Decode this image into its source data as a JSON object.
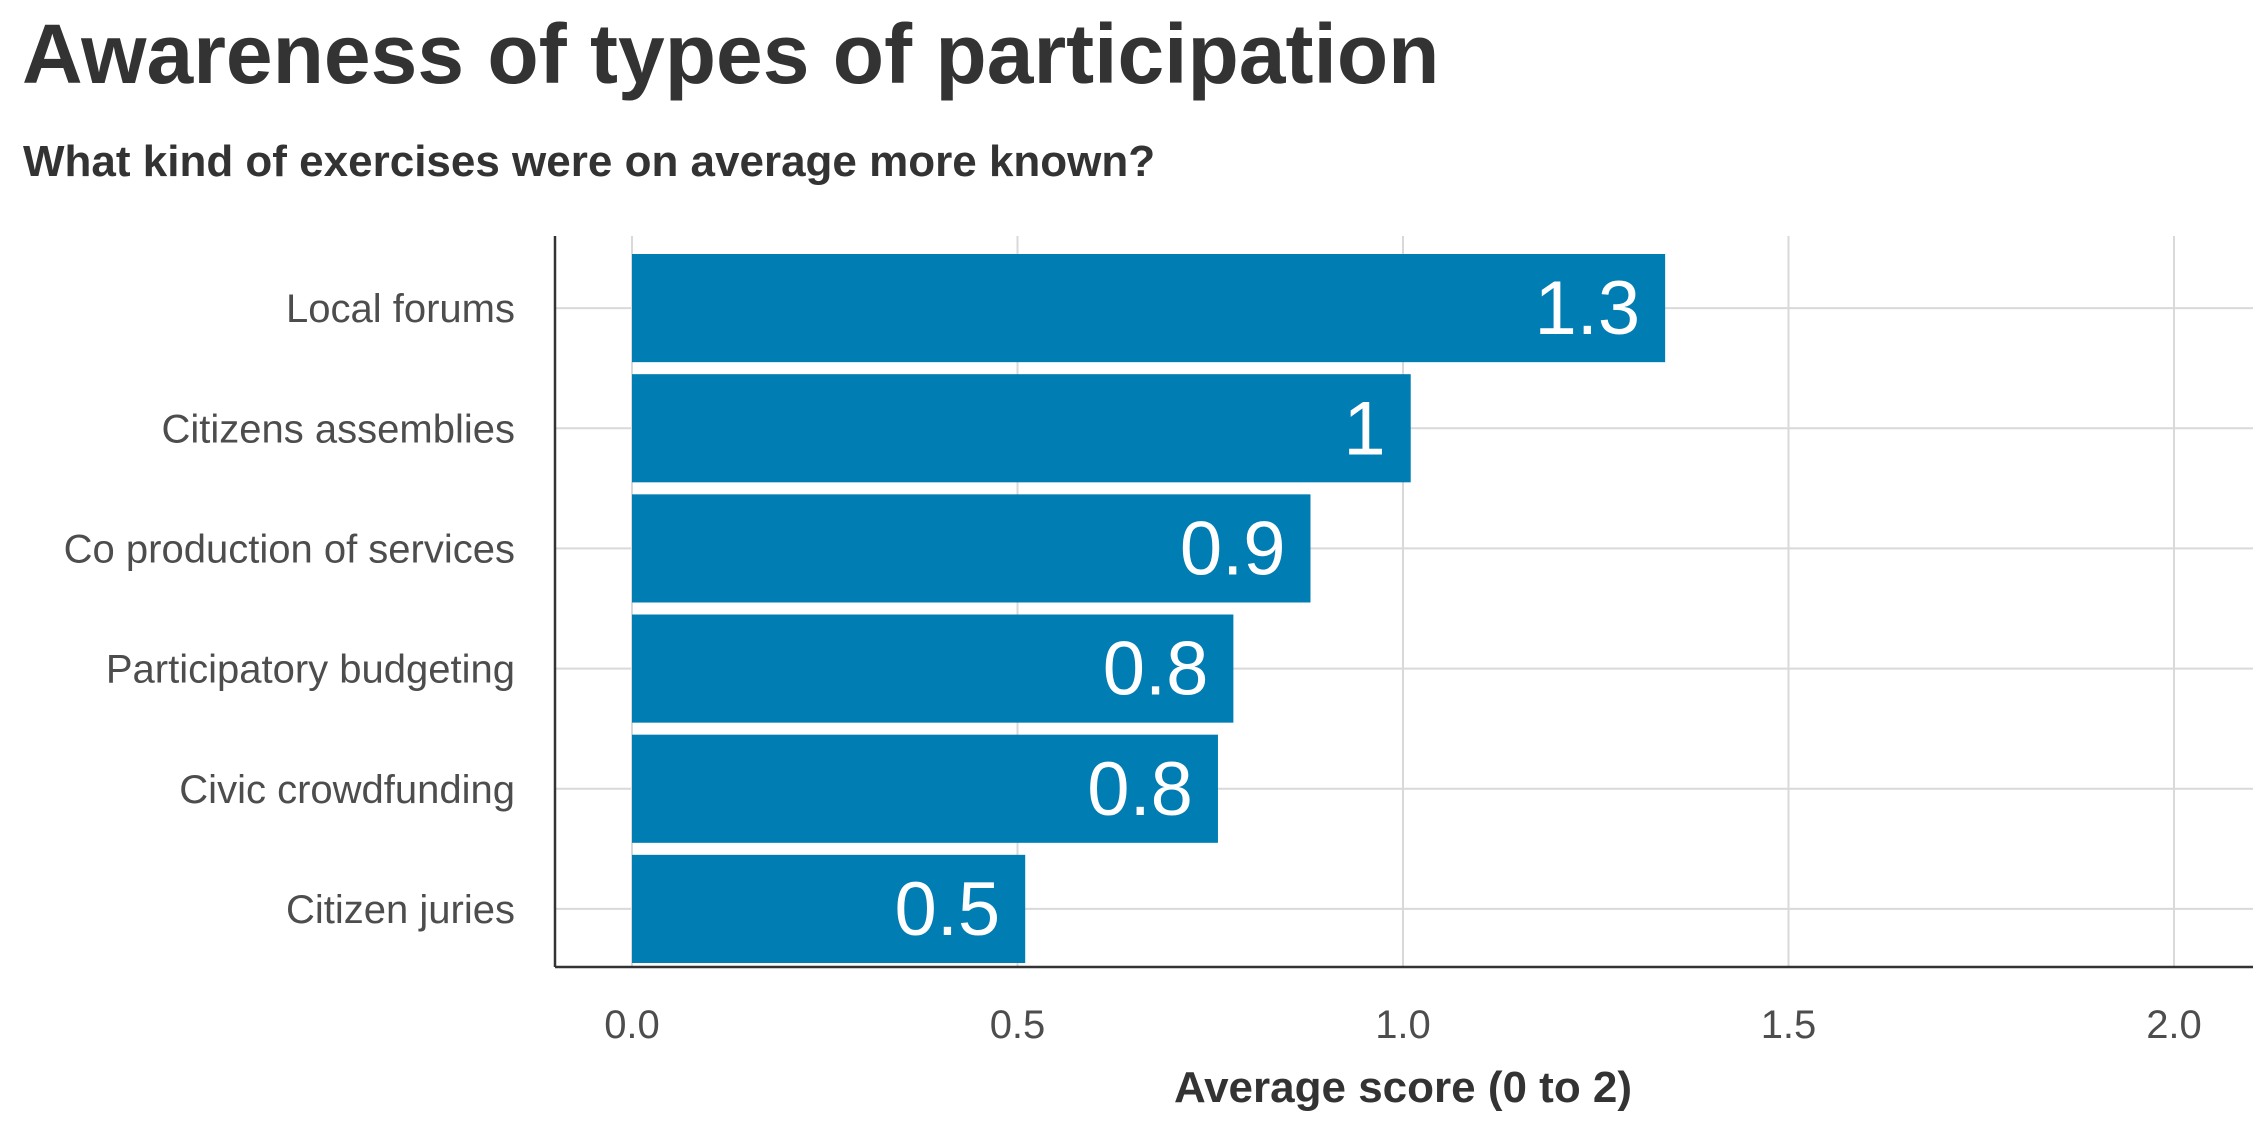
{
  "chart_data": {
    "type": "bar",
    "orientation": "horizontal",
    "title": "Awareness of types of participation",
    "subtitle": "What kind of exercises were on average more known?",
    "xlabel": "Average score (0 to 2)",
    "ylabel": "",
    "categories": [
      "Local forums",
      "Citizens assemblies",
      "Co production of services",
      "Participatory budgeting",
      "Civic crowdfunding",
      "Citizen juries"
    ],
    "values": [
      1.34,
      1.01,
      0.88,
      0.78,
      0.76,
      0.51
    ],
    "data_labels": [
      "1.3",
      "1",
      "0.9",
      "0.8",
      "0.8",
      "0.5"
    ],
    "x_ticks": [
      0.0,
      0.5,
      1.0,
      1.5,
      2.0
    ],
    "x_tick_labels": [
      "0.0",
      "0.5",
      "1.0",
      "1.5",
      "2.0"
    ],
    "xlim": [
      -0.1,
      2.1
    ],
    "grid": true,
    "legend": "none",
    "bar_color": "#007db3",
    "label_color": "#ffffff"
  }
}
